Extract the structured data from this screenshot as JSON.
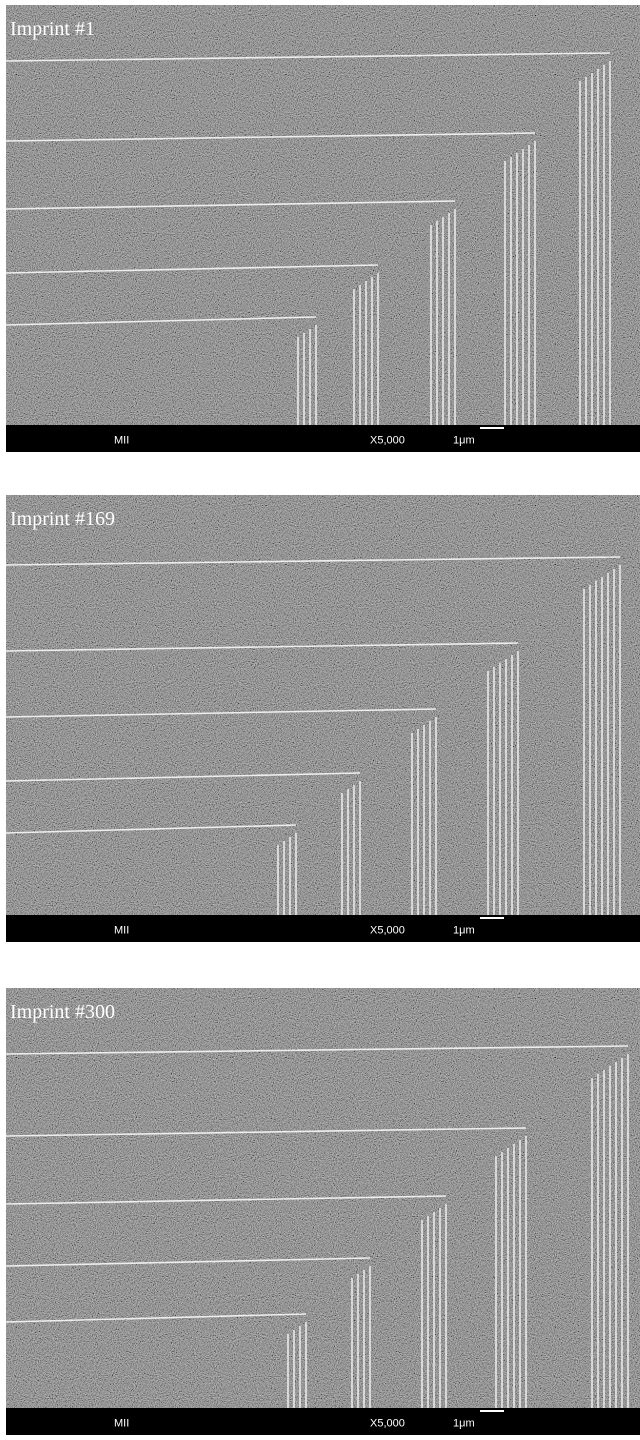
{
  "panels": [
    {
      "label": "Imprint #1",
      "info": {
        "left": "MII",
        "magnification": "X5,000",
        "scale": "1μm"
      }
    },
    {
      "label": "Imprint #169",
      "info": {
        "left": "MII",
        "magnification": "X5,000",
        "scale": "1μm"
      }
    },
    {
      "label": "Imprint #300",
      "info": {
        "left": "MII",
        "magnification": "X5,000",
        "scale": "1μm"
      }
    }
  ]
}
